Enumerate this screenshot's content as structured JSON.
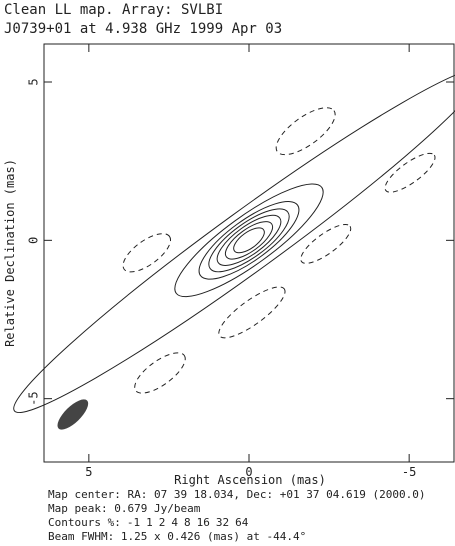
{
  "chart_data": {
    "type": "contour",
    "title": "Clean LL map.  Array:  SVLBI",
    "subtitle": "J0739+01 at 4.938 GHz 1999 Apr 03",
    "x_label": "Right Ascension  (mas)",
    "y_label": "Relative Declination  (mas)",
    "xlim": [
      6.4,
      -6.4
    ],
    "ylim": [
      -7.0,
      6.2
    ],
    "xticks": [
      5,
      0,
      -5
    ],
    "yticks": [
      5,
      0,
      -5
    ],
    "footer": [
      "Map center:  RA: 07 39 18.034,  Dec: +01 37 04.619 (2000.0)",
      "Map peak: 0.679 Jy/beam",
      "Beam FWHM: 1.25 x 0.426 (mas) at -44.4°"
    ],
    "contour_label": "Contours %:",
    "contour_levels": [
      -1,
      1,
      2,
      4,
      8,
      16,
      32,
      64
    ],
    "color": "#222222",
    "beam_color": "#444444"
  }
}
